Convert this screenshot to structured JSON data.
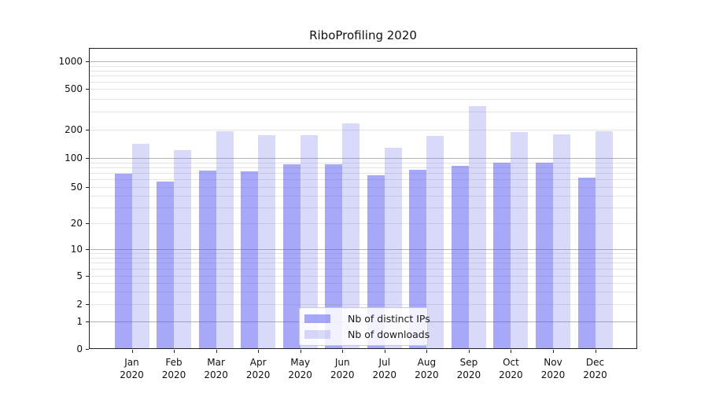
{
  "chart_data": {
    "type": "bar",
    "title": "RiboProfiling 2020",
    "categories": [
      "Jan",
      "Feb",
      "Mar",
      "Apr",
      "May",
      "Jun",
      "Jul",
      "Aug",
      "Sep",
      "Oct",
      "Nov",
      "Dec"
    ],
    "year_label": "2020",
    "series": [
      {
        "name": "Nb of distinct IPs",
        "color": "rgba(81,81,241,0.5)",
        "values": [
          68,
          57,
          74,
          72,
          86,
          86,
          66,
          76,
          83,
          90,
          89,
          62
        ]
      },
      {
        "name": "Nb of downloads",
        "color": "rgba(103,103,231,0.25)",
        "values": [
          140,
          122,
          192,
          175,
          174,
          228,
          127,
          171,
          340,
          188,
          177,
          192
        ]
      }
    ],
    "yticks": [
      0,
      1,
      2,
      5,
      10,
      20,
      50,
      100,
      200,
      500,
      1000
    ],
    "grid": {
      "major": [
        1,
        10,
        100,
        1000
      ],
      "minor": [
        2,
        3,
        4,
        5,
        6,
        7,
        8,
        9,
        20,
        30,
        40,
        50,
        60,
        70,
        80,
        90,
        200,
        300,
        400,
        500,
        600,
        700,
        800,
        900
      ]
    },
    "yscale": "log-like",
    "ylim": [
      0,
      1000
    ],
    "legend_position": "lower center",
    "colors": {
      "major_grid": "#b3b3b3",
      "minor_grid": "#e4e4e4",
      "spine": "#222222"
    }
  }
}
